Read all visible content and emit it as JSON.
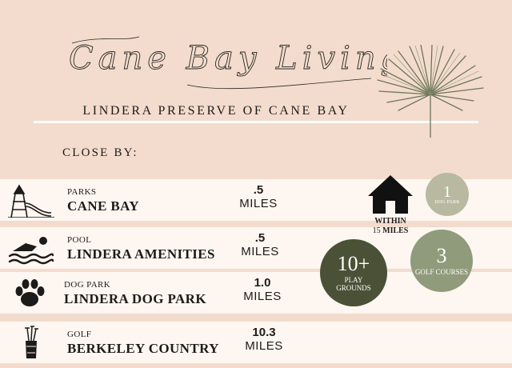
{
  "header": {
    "script_title": "Cane Bay Living",
    "subtitle": "LINDERA PRESERVE OF CANE BAY"
  },
  "section_label": "CLOSE BY:",
  "amenities": [
    {
      "category": "PARKS",
      "name": "CANE BAY",
      "distance": ".5",
      "unit": "MILES",
      "icon": "playground-icon"
    },
    {
      "category": "POOL",
      "name": "LINDERA AMENITIES",
      "distance": ".5",
      "unit": "MILES",
      "icon": "swimmer-icon"
    },
    {
      "category": "DOG PARK",
      "name": "LINDERA DOG PARK",
      "distance": "1.0",
      "unit": "MILES",
      "icon": "paw-icon"
    },
    {
      "category": "GOLF",
      "name": "BERKELEY COUNTRY",
      "distance": "10.3",
      "unit": "MILES",
      "icon": "golf-bag-icon"
    }
  ],
  "within": {
    "line1": "WITHIN",
    "line2_prefix": "15 ",
    "line2_bold": "MILES",
    "icon": "house-icon"
  },
  "stats": [
    {
      "number": "1",
      "label": "DOG PARK",
      "color": "#b9b9a1"
    },
    {
      "number": "3",
      "label": "GOLF COURSES",
      "color": "#8f9b7b"
    },
    {
      "number": "10+",
      "label": "PLAY GROUNDS",
      "color": "#4a5136"
    }
  ],
  "colors": {
    "background": "#f3dccd",
    "row_band": "#fdf6f1",
    "text": "#1d1b19",
    "palm": "#6e7559"
  }
}
